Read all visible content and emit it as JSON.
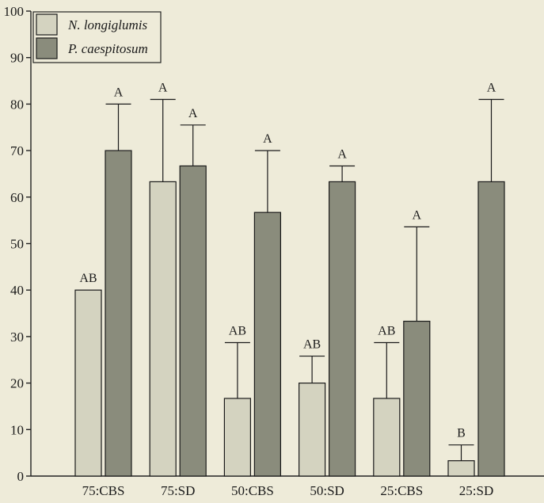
{
  "chart_data": {
    "type": "bar",
    "title": "",
    "xlabel": "",
    "ylabel": "",
    "ylim": [
      0,
      100
    ],
    "yticks": [
      0,
      10,
      20,
      30,
      40,
      50,
      60,
      70,
      80,
      90,
      100
    ],
    "grid": false,
    "legend_position": "top-left",
    "categories": [
      "75:CBS",
      "75:SD",
      "50:CBS",
      "50:SD",
      "25:CBS",
      "25:SD"
    ],
    "series": [
      {
        "name": "N. longiglumis",
        "color": "#D4D3C0",
        "values": [
          40,
          63.3,
          16.7,
          20,
          16.7,
          3.3
        ],
        "error_upper": [
          40,
          81,
          28.7,
          25.8,
          28.7,
          6.7
        ],
        "significance": [
          "AB",
          "A",
          "AB",
          "AB",
          "AB",
          "B"
        ]
      },
      {
        "name": "P. caespitosum",
        "color": "#8A8C7C",
        "values": [
          70,
          66.7,
          56.7,
          63.3,
          33.3,
          63.3
        ],
        "error_upper": [
          80,
          75.5,
          70,
          66.7,
          53.6,
          81
        ],
        "significance": [
          "A",
          "A",
          "A",
          "A",
          "A",
          "A"
        ]
      }
    ]
  }
}
